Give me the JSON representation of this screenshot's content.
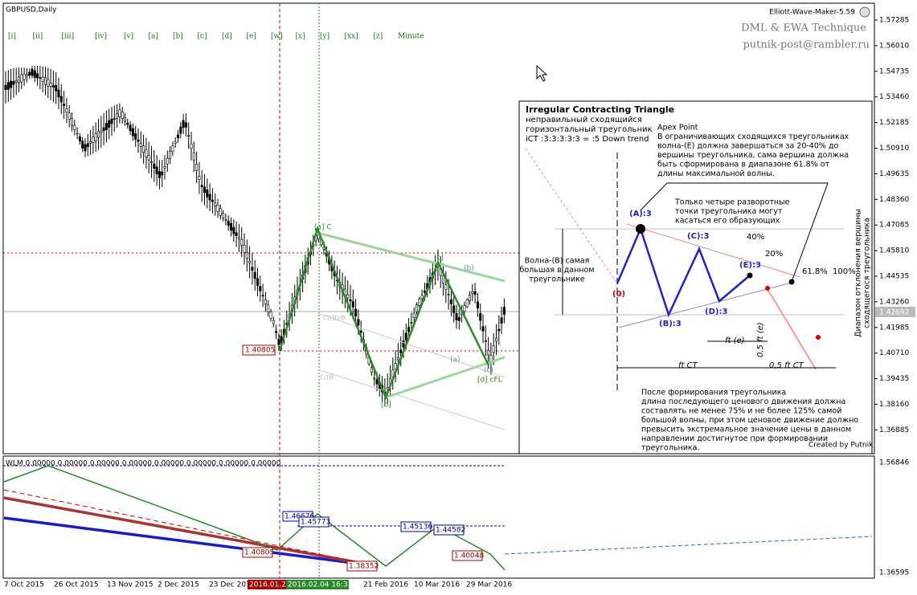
{
  "header": {
    "symbol": "GBPUSD,Daily",
    "indicator": "Elliott-Wave-Maker-5.59",
    "brand": "DML & EWA Technique",
    "email": "putnik-post@rambler.ru"
  },
  "wave_buttons": [
    "[i]",
    "[ii]",
    "[iii]",
    "[iv]",
    "[v]",
    "[a]",
    "[b]",
    "[c]",
    "[d]",
    "[e]",
    "[w]",
    "[x]",
    "[y]",
    "[xx]",
    "[z]",
    "Minute"
  ],
  "price_axis": {
    "ticks": [
      "1.57285",
      "1.56010",
      "1.54735",
      "1.53460",
      "1.52185",
      "1.50910",
      "1.49635",
      "1.48360",
      "1.47085",
      "1.45810",
      "1.44535",
      "1.43260",
      "1.41985",
      "1.40710",
      "1.39435",
      "1.38160",
      "1.36885"
    ],
    "current": "1.42692"
  },
  "lower_axis": {
    "ticks": [
      "1.56846",
      "1.36595"
    ]
  },
  "date_axis": [
    "7 Oct 2015",
    "26 Oct 2015",
    "13 Nov 2015",
    "2 Dec 2015",
    "23 Dec 2015",
    "2016.01.21",
    "2016.02.04 16:33",
    "21 Feb 2016",
    "10 Mar 2016",
    "29 Mar 2016"
  ],
  "chart_labels": {
    "low_price": "1.40805",
    "wave_a": "[a] C",
    "wave_b": "[b]",
    "wave_c": "[c]",
    "wave_d": "[d] cFL",
    "sub_a": "(a)",
    "sub_b": "(b)",
    "sub_c": "(c)",
    "channel_1": "C/(B)/B",
    "channel_2": "C/(B"
  },
  "lower_pane": {
    "header": "WLM 0.00000 0.00000 0.00000 0.00000 0.00000 0.00000 0.00000 0.00000",
    "boxes": [
      "1.46676",
      "1.45773",
      "1.45136",
      "1.44582",
      "1.40805",
      "1.38352",
      "1.40048"
    ]
  },
  "panel": {
    "title": "Irregular Contracting Triangle",
    "subtitle": [
      "неправильный сходящийся",
      "горизонтальный треугольник",
      "iCT :3:3:3:3:3 = :5 Down trend"
    ],
    "apex": [
      "Apex Point",
      "В ограничивающих сходящихся треугольниках",
      "волна-(E) должна завершаться за 20-40% до",
      "вершины треугольника, сама вершина должна",
      "быть сформирована в диапазоне 61.8% от",
      "длины максимальной волны."
    ],
    "note": [
      "Только четыре разворотные",
      "точки треугольника могут",
      "касаться его образующих"
    ],
    "left": [
      "Волна-(B) самая",
      "большая в данном",
      "треугольнике"
    ],
    "points": {
      "zero": "(0)",
      "a": "(A):3",
      "b": "(B):3",
      "c": "(C):3",
      "d": "(D):3",
      "e": "(E):3"
    },
    "levels": {
      "p40": "40%",
      "p20": "20%",
      "p618": "61.8%",
      "p100": "100%"
    },
    "measures": {
      "fte": "ft (e)",
      "half_fte": "0,5 ft (e)",
      "ftct": "ft CT",
      "half_ftct": "0,5 ft CT"
    },
    "vertical": [
      "Диапазон отклонения вершины",
      "сходящегося треугольника"
    ],
    "bottom": [
      "После формирования треугольника",
      "длина последующего ценового движения должна",
      "составлять не менее 75% и не более 125% самой",
      "большой волны, при этом ценовое движение должно",
      "превысить экстремальное значение цены в данном",
      "направлении достигнутое при формировании",
      "треугольника."
    ],
    "credit": "Created by Putnik"
  }
}
